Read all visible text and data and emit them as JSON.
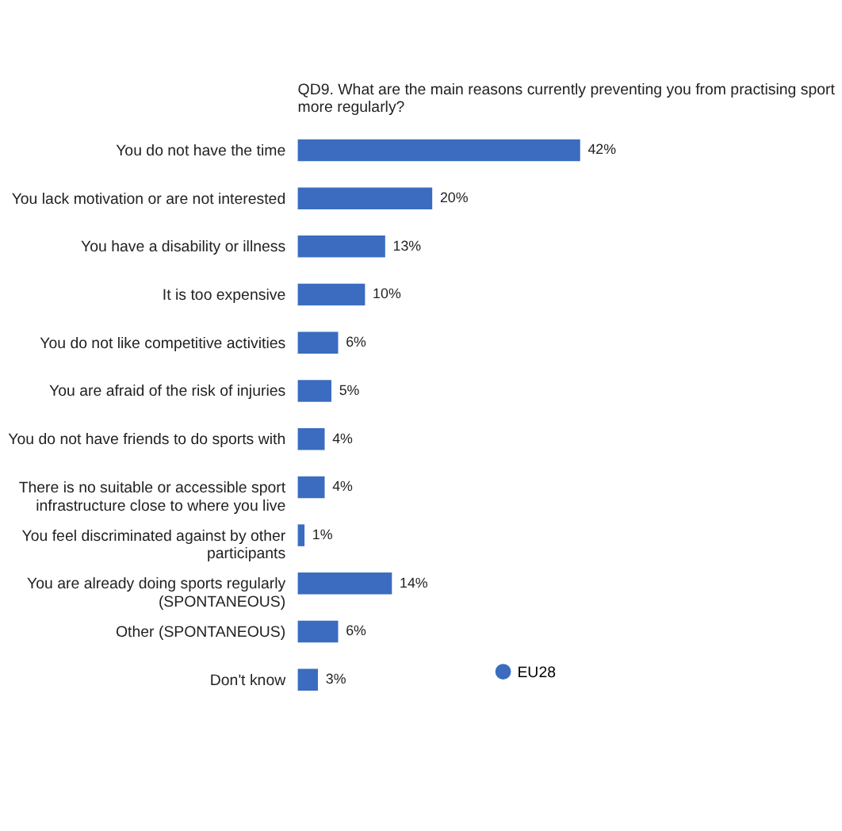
{
  "chart_data": {
    "type": "bar",
    "orientation": "horizontal",
    "title": "QD9. What are the main reasons currently preventing you from practising sport more regularly?",
    "categories": [
      "You do not have the time",
      "You lack motivation or are not interested",
      "You have a disability or illness",
      "It is too expensive",
      "You do not like competitive activities",
      "You are afraid of the risk of injuries",
      "You do not have friends to do sports with",
      "There is no suitable or accessible sport infrastructure close to where you live",
      "You feel discriminated against by other participants",
      "You are already doing sports regularly (SPONTANEOUS)",
      "Other (SPONTANEOUS)",
      "Don't know"
    ],
    "series": [
      {
        "name": "EU28",
        "color": "#3b6cbf",
        "values": [
          42,
          20,
          13,
          10,
          6,
          5,
          4,
          4,
          1,
          14,
          6,
          3
        ],
        "value_labels": [
          "42%",
          "20%",
          "13%",
          "10%",
          "6%",
          "5%",
          "4%",
          "4%",
          "1%",
          "14%",
          "6%",
          "3%"
        ]
      }
    ],
    "legend": "bottom right",
    "grid": false
  }
}
